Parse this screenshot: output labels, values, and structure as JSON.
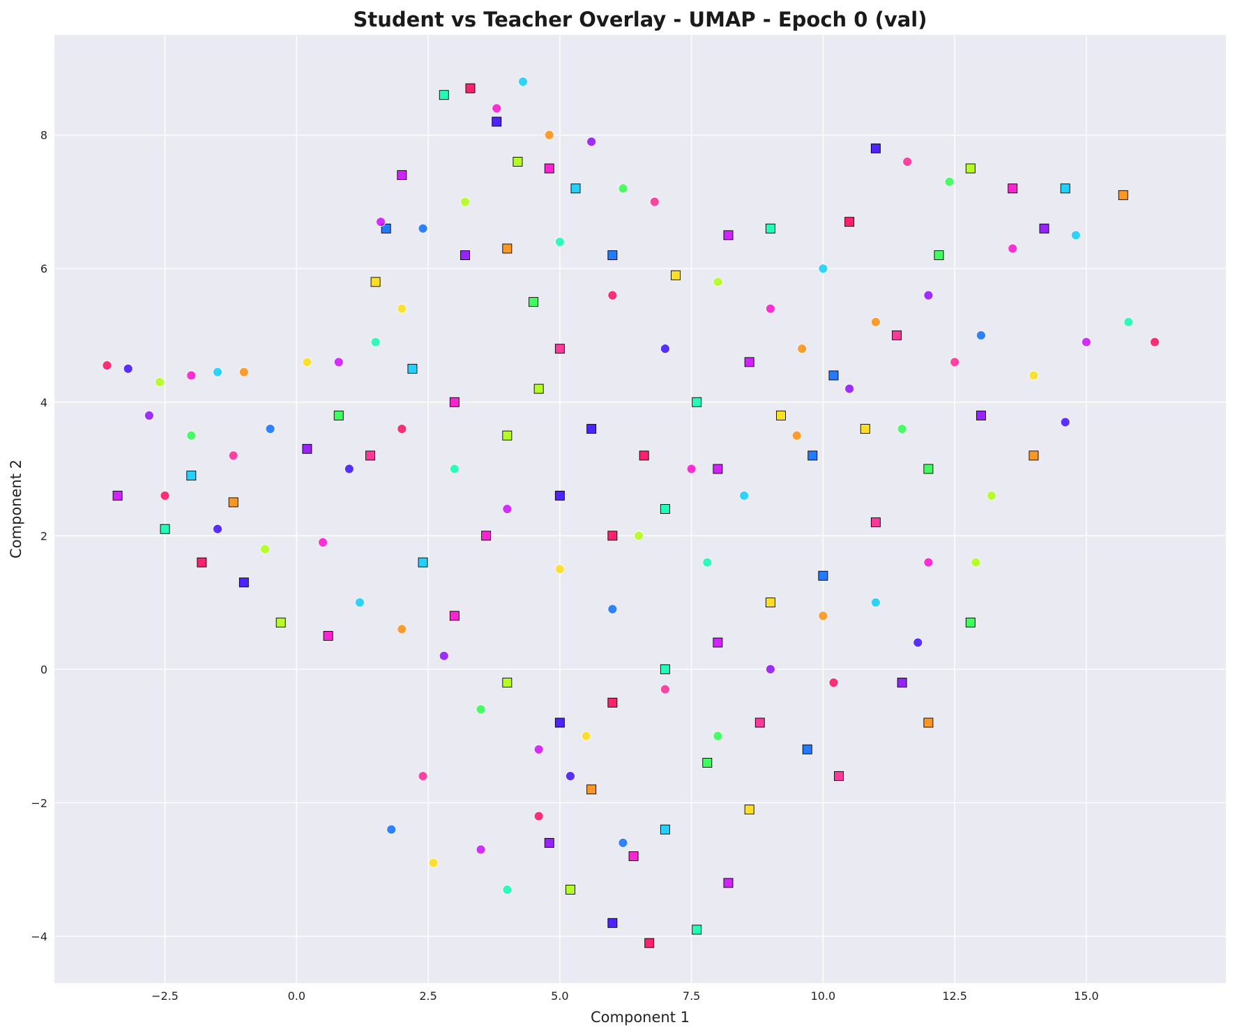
{
  "chart_data": {
    "type": "scatter",
    "title": "Student vs Teacher Overlay - UMAP - Epoch 0 (val)",
    "xlabel": "Component 1",
    "ylabel": "Component 2",
    "xlim": [
      -4.6,
      17.65
    ],
    "ylim": [
      -4.7,
      9.5
    ],
    "xticks": [
      -2.5,
      0.0,
      2.5,
      5.0,
      7.5,
      10.0,
      12.5,
      15.0
    ],
    "xtick_labels": [
      "−2.5",
      "0.0",
      "2.5",
      "5.0",
      "7.5",
      "10.0",
      "12.5",
      "15.0"
    ],
    "yticks": [
      -4,
      -2,
      0,
      2,
      4,
      6,
      8
    ],
    "ytick_labels": [
      "−4",
      "−2",
      "0",
      "2",
      "4",
      "6",
      "8"
    ],
    "grid": true,
    "background_color": "#eaeaf2",
    "marker_colors": [
      "#ff0055",
      "#ff1a8c",
      "#ff00cc",
      "#cc00ff",
      "#8800ff",
      "#3300ff",
      "#0066ff",
      "#00ccff",
      "#00ffaa",
      "#22ff44",
      "#aaff00",
      "#ffdd00",
      "#ff8800"
    ],
    "series": [
      {
        "marker": "circle",
        "edge_color": "#ffffff",
        "points": [
          [
            -3.6,
            4.55
          ],
          [
            -3.2,
            4.5
          ],
          [
            -2.6,
            4.3
          ],
          [
            -2.0,
            4.4
          ],
          [
            -1.5,
            4.45
          ],
          [
            -1.0,
            4.45
          ],
          [
            -2.8,
            3.8
          ],
          [
            -2.0,
            3.5
          ],
          [
            -1.2,
            3.2
          ],
          [
            -0.5,
            3.6
          ],
          [
            0.2,
            4.6
          ],
          [
            0.8,
            4.6
          ],
          [
            1.5,
            4.9
          ],
          [
            -2.5,
            2.6
          ],
          [
            -1.5,
            2.1
          ],
          [
            -0.6,
            1.8
          ],
          [
            0.5,
            1.9
          ],
          [
            1.2,
            1.0
          ],
          [
            2.0,
            0.6
          ],
          [
            2.8,
            0.2
          ],
          [
            3.5,
            -0.6
          ],
          [
            2.4,
            -1.6
          ],
          [
            1.8,
            -2.4
          ],
          [
            2.6,
            -2.9
          ],
          [
            3.5,
            -2.7
          ],
          [
            4.0,
            -3.3
          ],
          [
            4.6,
            -2.2
          ],
          [
            5.2,
            -1.6
          ],
          [
            3.2,
            7.0
          ],
          [
            3.8,
            8.4
          ],
          [
            4.3,
            8.8
          ],
          [
            4.8,
            8.0
          ],
          [
            5.6,
            7.9
          ],
          [
            6.2,
            7.2
          ],
          [
            6.8,
            7.0
          ],
          [
            2.4,
            6.6
          ],
          [
            2.0,
            5.4
          ],
          [
            1.6,
            6.7
          ],
          [
            5.0,
            6.4
          ],
          [
            6.0,
            5.6
          ],
          [
            7.0,
            4.8
          ],
          [
            8.0,
            5.8
          ],
          [
            9.0,
            5.4
          ],
          [
            10.0,
            6.0
          ],
          [
            11.0,
            5.2
          ],
          [
            12.0,
            5.6
          ],
          [
            12.4,
            7.3
          ],
          [
            11.6,
            7.6
          ],
          [
            13.0,
            5.0
          ],
          [
            14.0,
            4.4
          ],
          [
            15.0,
            4.9
          ],
          [
            15.8,
            5.2
          ],
          [
            16.3,
            4.9
          ],
          [
            14.6,
            3.7
          ],
          [
            13.2,
            2.6
          ],
          [
            12.0,
            1.6
          ],
          [
            11.0,
            1.0
          ],
          [
            10.0,
            0.8
          ],
          [
            9.0,
            0.0
          ],
          [
            8.0,
            -1.0
          ],
          [
            7.0,
            -0.3
          ],
          [
            6.0,
            0.9
          ],
          [
            5.0,
            1.5
          ],
          [
            4.0,
            2.4
          ],
          [
            3.0,
            3.0
          ],
          [
            2.0,
            3.6
          ],
          [
            1.0,
            3.0
          ],
          [
            6.5,
            2.0
          ],
          [
            7.5,
            3.0
          ],
          [
            8.5,
            2.6
          ],
          [
            9.5,
            3.5
          ],
          [
            10.5,
            4.2
          ],
          [
            11.5,
            3.6
          ],
          [
            12.5,
            4.6
          ],
          [
            6.2,
            -2.6
          ],
          [
            5.5,
            -1.0
          ],
          [
            4.6,
            -1.2
          ],
          [
            7.8,
            1.6
          ],
          [
            10.2,
            -0.2
          ],
          [
            11.8,
            0.4
          ],
          [
            12.9,
            1.6
          ],
          [
            13.6,
            6.3
          ],
          [
            14.8,
            6.5
          ],
          [
            9.6,
            4.8
          ]
        ]
      },
      {
        "marker": "square",
        "edge_color": "#000000",
        "points": [
          [
            -3.4,
            2.6
          ],
          [
            -2.5,
            2.1
          ],
          [
            -1.8,
            1.6
          ],
          [
            -1.0,
            1.3
          ],
          [
            -0.3,
            0.7
          ],
          [
            0.6,
            0.5
          ],
          [
            -2.0,
            2.9
          ],
          [
            -1.2,
            2.5
          ],
          [
            0.2,
            3.3
          ],
          [
            0.8,
            3.8
          ],
          [
            1.4,
            3.2
          ],
          [
            1.7,
            6.6
          ],
          [
            1.5,
            5.8
          ],
          [
            2.0,
            7.4
          ],
          [
            2.8,
            8.6
          ],
          [
            3.3,
            8.7
          ],
          [
            3.8,
            8.2
          ],
          [
            4.2,
            7.6
          ],
          [
            4.8,
            7.5
          ],
          [
            5.3,
            7.2
          ],
          [
            4.0,
            6.3
          ],
          [
            3.2,
            6.2
          ],
          [
            4.5,
            5.5
          ],
          [
            5.0,
            4.8
          ],
          [
            6.0,
            6.2
          ],
          [
            7.2,
            5.9
          ],
          [
            8.2,
            6.5
          ],
          [
            9.0,
            6.6
          ],
          [
            10.5,
            6.7
          ],
          [
            11.0,
            7.8
          ],
          [
            12.8,
            7.5
          ],
          [
            13.6,
            7.2
          ],
          [
            14.6,
            7.2
          ],
          [
            15.7,
            7.1
          ],
          [
            14.2,
            6.6
          ],
          [
            12.2,
            6.2
          ],
          [
            11.4,
            5.0
          ],
          [
            10.2,
            4.4
          ],
          [
            9.2,
            3.8
          ],
          [
            8.0,
            3.0
          ],
          [
            7.0,
            2.4
          ],
          [
            6.0,
            2.0
          ],
          [
            5.0,
            2.6
          ],
          [
            4.0,
            3.5
          ],
          [
            3.0,
            4.0
          ],
          [
            2.2,
            4.5
          ],
          [
            14.0,
            3.2
          ],
          [
            13.0,
            3.8
          ],
          [
            12.0,
            3.0
          ],
          [
            11.0,
            2.2
          ],
          [
            10.0,
            1.4
          ],
          [
            9.0,
            1.0
          ],
          [
            8.0,
            0.4
          ],
          [
            7.0,
            0.0
          ],
          [
            6.0,
            -0.5
          ],
          [
            5.0,
            -0.8
          ],
          [
            4.0,
            -0.2
          ],
          [
            3.0,
            0.8
          ],
          [
            2.4,
            1.6
          ],
          [
            12.0,
            -0.8
          ],
          [
            11.5,
            -0.2
          ],
          [
            12.8,
            0.7
          ],
          [
            10.3,
            -1.6
          ],
          [
            9.7,
            -1.2
          ],
          [
            8.6,
            -2.1
          ],
          [
            8.2,
            -3.2
          ],
          [
            7.6,
            -3.9
          ],
          [
            6.7,
            -4.1
          ],
          [
            6.0,
            -3.8
          ],
          [
            5.2,
            -3.3
          ],
          [
            6.4,
            -2.8
          ],
          [
            7.0,
            -2.4
          ],
          [
            5.6,
            -1.8
          ],
          [
            4.8,
            -2.6
          ],
          [
            7.8,
            -1.4
          ],
          [
            8.8,
            -0.8
          ],
          [
            9.8,
            3.2
          ],
          [
            10.8,
            3.6
          ],
          [
            8.6,
            4.6
          ],
          [
            7.6,
            4.0
          ],
          [
            6.6,
            3.2
          ],
          [
            5.6,
            3.6
          ],
          [
            4.6,
            4.2
          ],
          [
            3.6,
            2.0
          ]
        ]
      }
    ]
  }
}
